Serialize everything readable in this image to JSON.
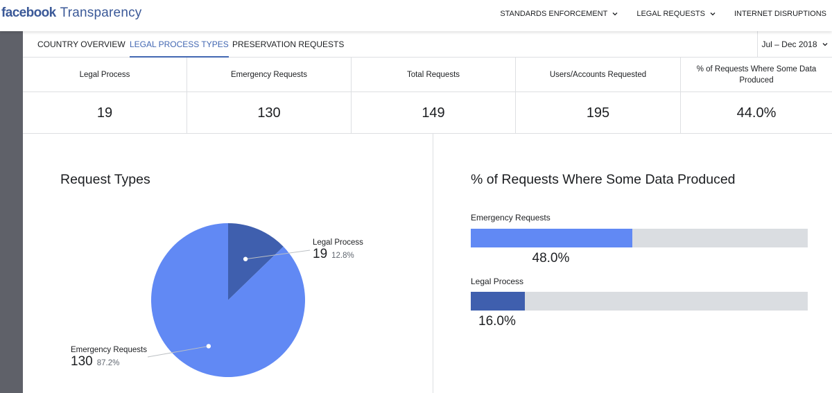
{
  "header": {
    "brand": "facebook",
    "product": "Transparency",
    "nav": [
      {
        "label": "STANDARDS ENFORCEMENT"
      },
      {
        "label": "LEGAL REQUESTS"
      },
      {
        "label": "INTERNET DISRUPTIONS"
      }
    ]
  },
  "subnav": {
    "tabs": [
      {
        "label": "COUNTRY OVERVIEW"
      },
      {
        "label": "LEGAL PROCESS TYPES"
      },
      {
        "label": "PRESERVATION REQUESTS"
      }
    ],
    "active_tab": "LEGAL PROCESS TYPES",
    "period": "Jul – Dec 2018"
  },
  "stats": [
    {
      "label": "Legal Process",
      "value": "19"
    },
    {
      "label": "Emergency Requests",
      "value": "130"
    },
    {
      "label": "Total Requests",
      "value": "149"
    },
    {
      "label": "Users/Accounts Requested",
      "value": "195"
    },
    {
      "label": "% of Requests Where Some Data Produced",
      "value": "44.0%"
    }
  ],
  "colors": {
    "brand": "#3b5998",
    "accent": "#4267b2",
    "emergency": "#6189f4",
    "legal": "#3f5fae",
    "track": "#dadde1"
  },
  "chart_data": [
    {
      "type": "pie",
      "title": "Request Types",
      "slices": [
        {
          "name": "Legal Process",
          "value": 19,
          "percent": "12.8%"
        },
        {
          "name": "Emergency Requests",
          "value": 130,
          "percent": "87.2%"
        }
      ]
    },
    {
      "type": "bar",
      "title": "% of Requests Where Some Data Produced",
      "orientation": "horizontal",
      "ylim": [
        0,
        100
      ],
      "series": [
        {
          "name": "Emergency Requests",
          "value": 48.0,
          "label": "48.0%"
        },
        {
          "name": "Legal Process",
          "value": 16.0,
          "label": "16.0%"
        }
      ]
    }
  ]
}
